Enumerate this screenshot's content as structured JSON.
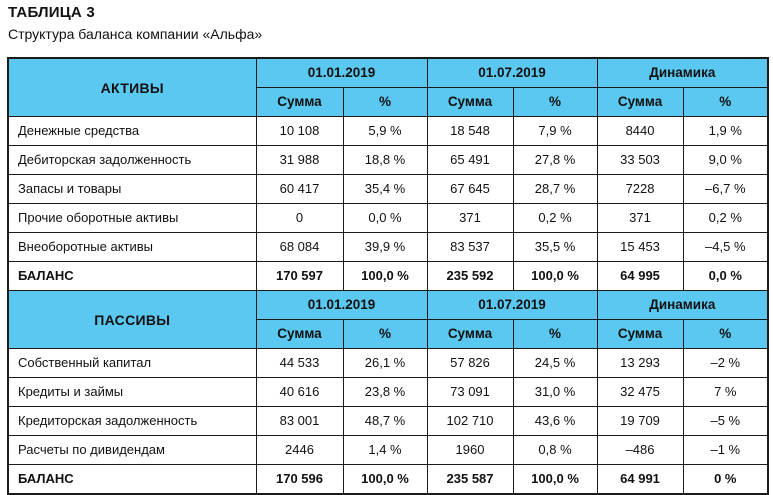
{
  "title": "ТАБЛИЦА 3",
  "subtitle": "Структура баланса компании «Альфа»",
  "columns": {
    "period1": "01.01.2019",
    "period2": "01.07.2019",
    "dynamics": "Динамика",
    "sum": "Сумма",
    "pct": "%"
  },
  "assets": {
    "header": "АКТИВЫ",
    "rows": [
      {
        "label": "Денежные средства",
        "v1": "10 108",
        "p1": "5,9 %",
        "v2": "18 548",
        "p2": "7,9 %",
        "dv": "8440",
        "dp": "1,9 %"
      },
      {
        "label": "Дебиторская задолженность",
        "v1": "31 988",
        "p1": "18,8 %",
        "v2": "65 491",
        "p2": "27,8 %",
        "dv": "33 503",
        "dp": "9,0 %"
      },
      {
        "label": "Запасы и товары",
        "v1": "60 417",
        "p1": "35,4 %",
        "v2": "67 645",
        "p2": "28,7 %",
        "dv": "7228",
        "dp": "–6,7 %"
      },
      {
        "label": "Прочие оборотные активы",
        "v1": "0",
        "p1": "0,0 %",
        "v2": "371",
        "p2": "0,2 %",
        "dv": "371",
        "dp": "0,2 %"
      },
      {
        "label": "Внеоборотные активы",
        "v1": "68 084",
        "p1": "39,9 %",
        "v2": "83 537",
        "p2": "35,5 %",
        "dv": "15 453",
        "dp": "–4,5 %"
      }
    ],
    "total": {
      "label": "БАЛАНС",
      "v1": "170 597",
      "p1": "100,0 %",
      "v2": "235 592",
      "p2": "100,0 %",
      "dv": "64 995",
      "dp": "0,0 %"
    }
  },
  "liabilities": {
    "header": "ПАССИВЫ",
    "rows": [
      {
        "label": "Собственный капитал",
        "v1": "44 533",
        "p1": "26,1 %",
        "v2": "57 826",
        "p2": "24,5 %",
        "dv": "13 293",
        "dp": "–2 %"
      },
      {
        "label": "Кредиты и займы",
        "v1": "40 616",
        "p1": "23,8 %",
        "v2": "73 091",
        "p2": "31,0 %",
        "dv": "32 475",
        "dp": "7 %"
      },
      {
        "label": "Кредиторская задолженность",
        "v1": "83 001",
        "p1": "48,7 %",
        "v2": "102 710",
        "p2": "43,6 %",
        "dv": "19 709",
        "dp": "–5 %"
      },
      {
        "label": "Расчеты по дивидендам",
        "v1": "2446",
        "p1": "1,4 %",
        "v2": "1960",
        "p2": "0,8 %",
        "dv": "–486",
        "dp": "–1 %"
      }
    ],
    "total": {
      "label": "БАЛАНС",
      "v1": "170 596",
      "p1": "100,0 %",
      "v2": "235 587",
      "p2": "100,0 %",
      "dv": "64 991",
      "dp": "0 %"
    }
  },
  "colors": {
    "header_bg": "#5ac8f0",
    "border": "#1a1a1a"
  }
}
